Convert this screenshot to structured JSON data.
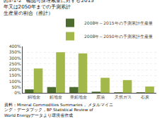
{
  "chart_data": {
    "type": "bar",
    "title": "図3-1-2　確認可採埋蔵量に対する2015\n年又は2050年までの予測累計\n生産量の割合（推計）",
    "categories": [
      "銅地金",
      "鉛地金",
      "亜鉛地金",
      "原油",
      "天然ガス",
      "石炭"
    ],
    "series": [
      {
        "name": "2008年～2015年の予測累計生産量",
        "color": "#4d6b2f",
        "values": [
          30,
          50,
          50,
          10,
          5,
          5
        ]
      },
      {
        "name": "2008年～2050年の予測累計生産量",
        "color": "#a3b84b",
        "values": [
          210,
          350,
          340,
          130,
          110,
          55
        ]
      }
    ],
    "ylim": [
      0,
      400
    ],
    "yticks": [
      {
        "value": 0,
        "label": "0%"
      },
      {
        "value": 50,
        "label": "50%"
      },
      {
        "value": 100,
        "label": "100%"
      },
      {
        "value": 150,
        "label": "150%"
      },
      {
        "value": 200,
        "label": "200%"
      },
      {
        "value": 250,
        "label": "250%"
      },
      {
        "value": 300,
        "label": "300%"
      },
      {
        "value": 350,
        "label": "350%"
      },
      {
        "value": 400,
        "label": "400%"
      }
    ],
    "grid": true,
    "legend": "upper right",
    "annotations": [
      "資料：Mineral Commodities Summaries， メタルマイニ\nング・データブック，BP Statistical Review of\nWorld Energyデータより環境省作成"
    ]
  }
}
